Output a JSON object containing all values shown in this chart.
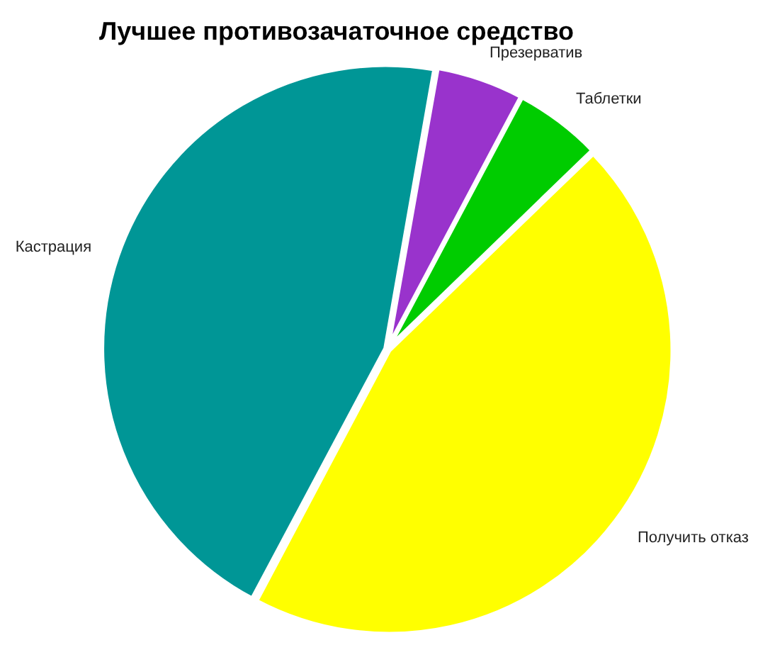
{
  "chart_data": {
    "type": "pie",
    "title": "Лучшее противозачаточное средство",
    "categories": [
      "Презерватив",
      "Таблетки",
      "Получить отказ",
      "Кастрация"
    ],
    "values": [
      5,
      5,
      45,
      45
    ],
    "colors": [
      "#9933cc",
      "#00cc00",
      "#ffff00",
      "#009696"
    ],
    "legend": false
  }
}
